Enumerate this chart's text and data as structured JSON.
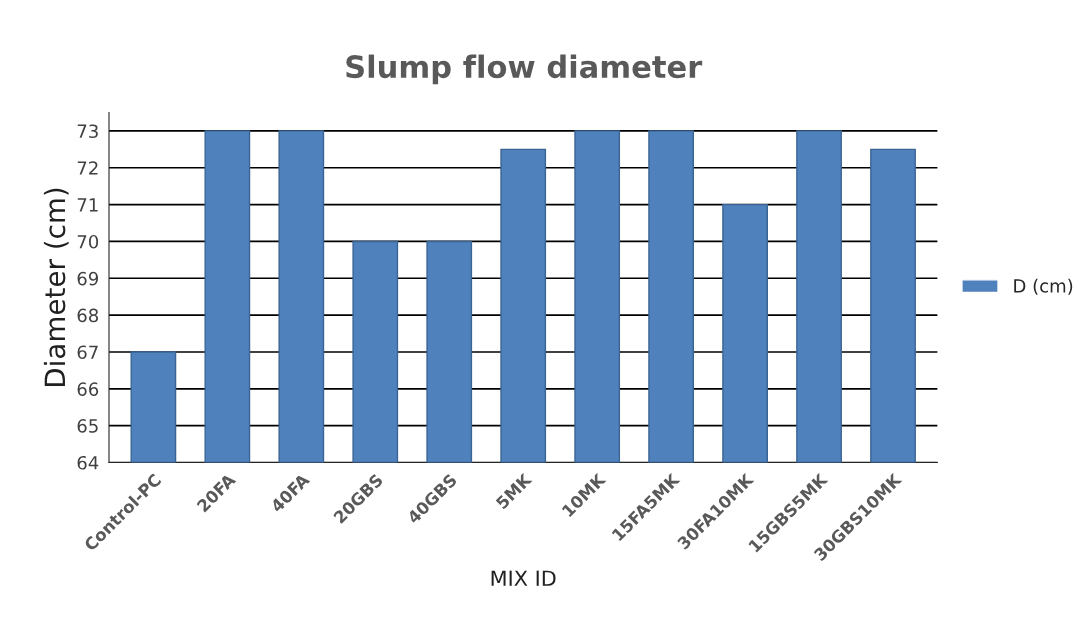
{
  "chart_data": {
    "type": "bar",
    "title": "Slump flow diameter",
    "xlabel": "MIX ID",
    "ylabel": "Diameter (cm)",
    "categories": [
      "Control-PC",
      "20FA",
      "40FA",
      "20GBS",
      "40GBS",
      "5MK",
      "10MK",
      "15FA5MK",
      "30FA10MK",
      "15GBS5MK",
      "30GBS10MK"
    ],
    "series": [
      {
        "name": "D (cm)",
        "color": "#4f81bd",
        "values": [
          67,
          73,
          73,
          70,
          70,
          72.5,
          73,
          73,
          71,
          73,
          72.5
        ]
      }
    ],
    "ylim": [
      64,
      73.5
    ],
    "yticks": [
      64,
      65,
      66,
      67,
      68,
      69,
      70,
      71,
      72,
      73
    ],
    "grid": "y",
    "legend": "right"
  }
}
